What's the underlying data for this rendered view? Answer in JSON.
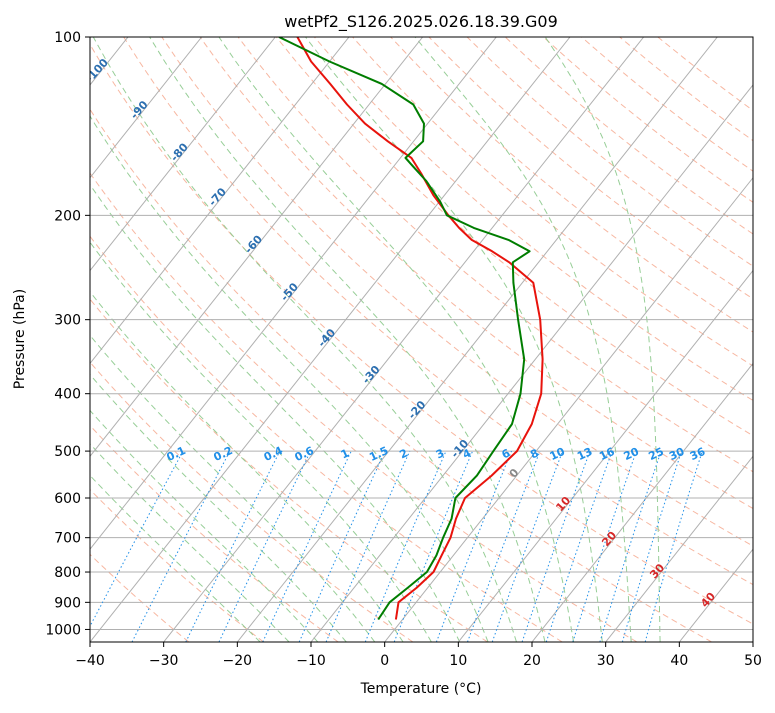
{
  "chart_data": {
    "type": "skew-t",
    "title": "wetPf2_S126.2025.026.18.39.G09",
    "xlabel": "Temperature (°C)",
    "ylabel": "Pressure (hPa)",
    "xlim": [
      -40,
      50
    ],
    "ylim": [
      1050,
      100
    ],
    "y_scale": "log",
    "x_ticks": [
      "−40",
      "−30",
      "−20",
      "−10",
      "0",
      "10",
      "20",
      "30",
      "40",
      "50"
    ],
    "y_ticks": [
      {
        "value": 1000,
        "label": "1000"
      },
      {
        "value": 900,
        "label": "900"
      },
      {
        "value": 800,
        "label": "800"
      },
      {
        "value": 700,
        "label": "700"
      },
      {
        "value": 600,
        "label": "600"
      },
      {
        "value": 500,
        "label": "500"
      },
      {
        "value": 400,
        "label": "400"
      },
      {
        "value": 300,
        "label": "300"
      },
      {
        "value": 200,
        "label": "200"
      },
      {
        "value": 100,
        "label": "100"
      }
    ],
    "grid": true,
    "isotherm_labels": [
      {
        "value": -100,
        "text": "-100"
      },
      {
        "value": -90,
        "text": "-90"
      },
      {
        "value": -80,
        "text": "-80"
      },
      {
        "value": -70,
        "text": "-70"
      },
      {
        "value": -60,
        "text": "-60"
      },
      {
        "value": -50,
        "text": "-50"
      },
      {
        "value": -40,
        "text": "-40"
      },
      {
        "value": -30,
        "text": "-30"
      },
      {
        "value": -20,
        "text": "-20"
      },
      {
        "value": -10,
        "text": "-10"
      }
    ],
    "adiabat_labels": [
      {
        "value": 0,
        "text": "0",
        "color": "#888888"
      },
      {
        "value": 10,
        "text": "10",
        "color": "#d62728"
      },
      {
        "value": 20,
        "text": "20",
        "color": "#d62728"
      },
      {
        "value": 30,
        "text": "30",
        "color": "#d62728"
      },
      {
        "value": 40,
        "text": "40",
        "color": "#d62728"
      }
    ],
    "mixing_ratio_labels": [
      "0.1",
      "0.2",
      "0.4",
      "0.6",
      "1",
      "1.5",
      "2",
      "3",
      "4",
      "6",
      "8",
      "10",
      "13",
      "16",
      "20",
      "25",
      "30",
      "36"
    ],
    "series": [
      {
        "color": "#e8130c",
        "points": [
          [
            962,
            -0.9
          ],
          [
            900,
            -2.4
          ],
          [
            850,
            -1.5
          ],
          [
            800,
            -0.9
          ],
          [
            750,
            -1.6
          ],
          [
            700,
            -2.3
          ],
          [
            650,
            -3.6
          ],
          [
            600,
            -4.6
          ],
          [
            550,
            -3.4
          ],
          [
            500,
            -2.6
          ],
          [
            450,
            -3.5
          ],
          [
            400,
            -5.5
          ],
          [
            350,
            -9.0
          ],
          [
            300,
            -13.6
          ],
          [
            260,
            -18.5
          ],
          [
            240,
            -24.0
          ],
          [
            230,
            -27.5
          ],
          [
            220,
            -31.5
          ],
          [
            210,
            -34.5
          ],
          [
            200,
            -37.3
          ],
          [
            185,
            -41.5
          ],
          [
            170,
            -45.5
          ],
          [
            160,
            -48.5
          ],
          [
            150,
            -53.5
          ],
          [
            140,
            -58.5
          ],
          [
            130,
            -63.0
          ],
          [
            120,
            -67.5
          ],
          [
            110,
            -72.5
          ],
          [
            100,
            -77.0
          ]
        ]
      },
      {
        "color": "#007d00",
        "points": [
          [
            962,
            -3.3
          ],
          [
            900,
            -3.6
          ],
          [
            850,
            -2.7
          ],
          [
            800,
            -1.8
          ],
          [
            750,
            -2.3
          ],
          [
            700,
            -3.3
          ],
          [
            650,
            -4.2
          ],
          [
            600,
            -5.9
          ],
          [
            550,
            -5.4
          ],
          [
            500,
            -5.8
          ],
          [
            450,
            -6.2
          ],
          [
            400,
            -8.3
          ],
          [
            350,
            -11.5
          ],
          [
            300,
            -16.6
          ],
          [
            260,
            -21.2
          ],
          [
            240,
            -23.5
          ],
          [
            230,
            -22.4
          ],
          [
            220,
            -26.5
          ],
          [
            210,
            -32.5
          ],
          [
            200,
            -37.5
          ],
          [
            190,
            -39.8
          ],
          [
            175,
            -44.0
          ],
          [
            165,
            -47.5
          ],
          [
            160,
            -49.3
          ],
          [
            150,
            -48.7
          ],
          [
            140,
            -50.5
          ],
          [
            130,
            -54.0
          ],
          [
            120,
            -60.5
          ],
          [
            110,
            -70.0
          ],
          [
            100,
            -79.5
          ]
        ]
      }
    ]
  },
  "colors": {
    "temperature": "#e8130c",
    "dewpoint": "#007d00",
    "isotherm_label": "#2c6fb0",
    "mixing_ratio": "#1f8fe8",
    "dry_adiabat": "#f5a58a",
    "moist_adiabat": "#8cc98c",
    "grid": "#b0b0b0"
  }
}
